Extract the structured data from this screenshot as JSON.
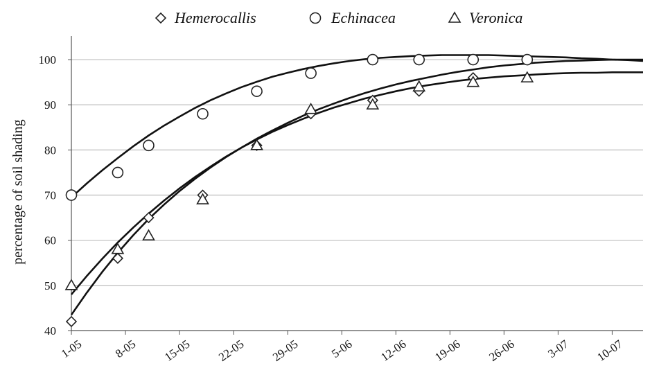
{
  "chart_data": {
    "type": "scatter",
    "title": "",
    "xlabel": "",
    "ylabel": "percentage of soil shading",
    "ylim": [
      40,
      104
    ],
    "yticks": [
      40,
      50,
      60,
      70,
      80,
      90,
      100
    ],
    "x_tick_labels": [
      "1-05",
      "8-05",
      "15-05",
      "22-05",
      "29-05",
      "5-06",
      "12-06",
      "19-06",
      "26-06",
      "3-07",
      "10-07"
    ],
    "x_tick_days": [
      0,
      7,
      14,
      21,
      28,
      35,
      42,
      49,
      56,
      63,
      70
    ],
    "xlim_days": [
      0,
      74
    ],
    "grid": "horizontal",
    "legend_position": "top",
    "series": [
      {
        "name": "Hemerocallis",
        "marker": "diamond",
        "x_days": [
          0,
          6,
          10,
          17,
          24,
          31,
          39,
          45,
          52
        ],
        "y": [
          42,
          56,
          65,
          70,
          81,
          88,
          91,
          93,
          96
        ],
        "fit_curve": [
          [
            0,
            43.5
          ],
          [
            2,
            48.4
          ],
          [
            4,
            53.0
          ],
          [
            6,
            57.2
          ],
          [
            8,
            61.1
          ],
          [
            10,
            64.7
          ],
          [
            12,
            67.9
          ],
          [
            14,
            70.9
          ],
          [
            16,
            73.6
          ],
          [
            18,
            76.1
          ],
          [
            20,
            78.4
          ],
          [
            22,
            80.5
          ],
          [
            24,
            82.5
          ],
          [
            26,
            84.3
          ],
          [
            28,
            86.0
          ],
          [
            30,
            87.6
          ],
          [
            32,
            89.0
          ],
          [
            34,
            90.3
          ],
          [
            36,
            91.5
          ],
          [
            38,
            92.6
          ],
          [
            40,
            93.6
          ],
          [
            42,
            94.5
          ],
          [
            44,
            95.3
          ],
          [
            46,
            96.0
          ],
          [
            48,
            96.7
          ],
          [
            50,
            97.3
          ],
          [
            52,
            97.8
          ],
          [
            54,
            98.3
          ],
          [
            56,
            98.7
          ],
          [
            58,
            99.0
          ],
          [
            60,
            99.3
          ],
          [
            62,
            99.5
          ],
          [
            64,
            99.7
          ],
          [
            66,
            99.8
          ],
          [
            68,
            99.9
          ],
          [
            70,
            100.0
          ],
          [
            72,
            100.0
          ],
          [
            74,
            100.0
          ]
        ]
      },
      {
        "name": "Echinacea",
        "marker": "circle",
        "x_days": [
          0,
          6,
          10,
          17,
          24,
          31,
          39,
          45,
          52,
          59
        ],
        "y": [
          70,
          75,
          81,
          88,
          93,
          97,
          100,
          100,
          100,
          100
        ],
        "fit_curve": [
          [
            0,
            69.5
          ],
          [
            2,
            72.6
          ],
          [
            4,
            75.5
          ],
          [
            6,
            78.2
          ],
          [
            8,
            80.8
          ],
          [
            10,
            83.2
          ],
          [
            12,
            85.4
          ],
          [
            14,
            87.4
          ],
          [
            16,
            89.3
          ],
          [
            18,
            91.0
          ],
          [
            20,
            92.5
          ],
          [
            22,
            93.9
          ],
          [
            24,
            95.1
          ],
          [
            26,
            96.2
          ],
          [
            28,
            97.1
          ],
          [
            30,
            97.9
          ],
          [
            32,
            98.6
          ],
          [
            34,
            99.2
          ],
          [
            36,
            99.7
          ],
          [
            38,
            100.1
          ],
          [
            40,
            100.4
          ],
          [
            42,
            100.6
          ],
          [
            44,
            100.8
          ],
          [
            46,
            100.9
          ],
          [
            48,
            101.0
          ],
          [
            50,
            101.0
          ],
          [
            52,
            101.0
          ],
          [
            54,
            101.0
          ],
          [
            56,
            100.9
          ],
          [
            58,
            100.8
          ],
          [
            60,
            100.7
          ],
          [
            62,
            100.6
          ],
          [
            64,
            100.5
          ],
          [
            66,
            100.3
          ],
          [
            68,
            100.2
          ],
          [
            70,
            100.0
          ],
          [
            72,
            99.9
          ],
          [
            74,
            99.7
          ]
        ]
      },
      {
        "name": "Veronica",
        "marker": "triangle",
        "x_days": [
          0,
          6,
          10,
          17,
          24,
          31,
          39,
          45,
          52,
          59
        ],
        "y": [
          50,
          58,
          61,
          69,
          81,
          89,
          90,
          94,
          95,
          96
        ],
        "fit_curve": [
          [
            0,
            48.0
          ],
          [
            2,
            52.1
          ],
          [
            4,
            55.9
          ],
          [
            6,
            59.5
          ],
          [
            8,
            62.8
          ],
          [
            10,
            65.9
          ],
          [
            12,
            68.8
          ],
          [
            14,
            71.5
          ],
          [
            16,
            74.0
          ],
          [
            18,
            76.3
          ],
          [
            20,
            78.5
          ],
          [
            22,
            80.5
          ],
          [
            24,
            82.3
          ],
          [
            26,
            84.0
          ],
          [
            28,
            85.5
          ],
          [
            30,
            86.9
          ],
          [
            32,
            88.2
          ],
          [
            34,
            89.4
          ],
          [
            36,
            90.4
          ],
          [
            38,
            91.4
          ],
          [
            40,
            92.2
          ],
          [
            42,
            93.0
          ],
          [
            44,
            93.7
          ],
          [
            46,
            94.3
          ],
          [
            48,
            94.8
          ],
          [
            50,
            95.3
          ],
          [
            52,
            95.7
          ],
          [
            54,
            96.0
          ],
          [
            56,
            96.3
          ],
          [
            58,
            96.5
          ],
          [
            60,
            96.7
          ],
          [
            62,
            96.9
          ],
          [
            64,
            97.0
          ],
          [
            66,
            97.1
          ],
          [
            68,
            97.1
          ],
          [
            70,
            97.2
          ],
          [
            72,
            97.2
          ],
          [
            74,
            97.2
          ]
        ]
      }
    ]
  }
}
